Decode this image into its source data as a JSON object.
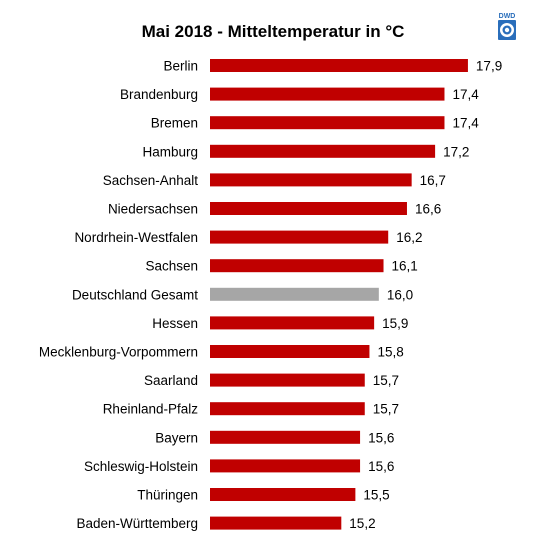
{
  "logo_text": "DWD",
  "chart_data": {
    "type": "bar",
    "orientation": "horizontal",
    "title": "Mai 2018 - Mitteltemperatur in °C",
    "categories": [
      "Berlin",
      "Brandenburg",
      "Bremen",
      "Hamburg",
      "Sachsen-Anhalt",
      "Niedersachsen",
      "Nordrhein-Westfalen",
      "Sachsen",
      "Deutschland Gesamt",
      "Hessen",
      "Mecklenburg-Vorpommern",
      "Saarland",
      "Rheinland-Pfalz",
      "Bayern",
      "Schleswig-Holstein",
      "Thüringen",
      "Baden-Württemberg"
    ],
    "values": [
      17.9,
      17.4,
      17.4,
      17.2,
      16.7,
      16.6,
      16.2,
      16.1,
      16.0,
      15.9,
      15.8,
      15.7,
      15.7,
      15.6,
      15.6,
      15.5,
      15.2
    ],
    "value_labels": [
      "17,9",
      "17,4",
      "17,4",
      "17,2",
      "16,7",
      "16,6",
      "16,2",
      "16,1",
      "16,0",
      "15,9",
      "15,8",
      "15,7",
      "15,7",
      "15,6",
      "15,6",
      "15,5",
      "15,2"
    ],
    "highlight_category": "Deutschland Gesamt",
    "bar_color": "#c00000",
    "highlight_color": "#a6a6a6",
    "logo_color": "#2a6ebb",
    "xlim": [
      12.4,
      18.2
    ],
    "grid": false,
    "legend": "none"
  }
}
